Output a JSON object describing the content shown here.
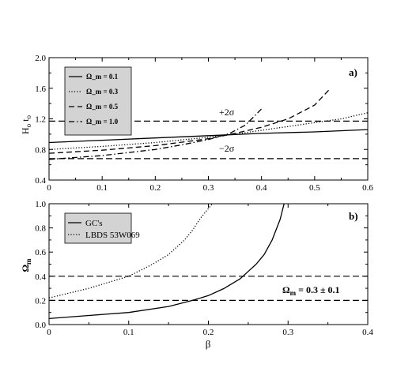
{
  "chart_data": [
    {
      "type": "line",
      "panel_label": "a)",
      "ylabel": "H_o t_o",
      "xlim": [
        0,
        0.6
      ],
      "ylim": [
        0.4,
        2.0
      ],
      "x_ticks": [
        "0",
        "0.1",
        "0.2",
        "0.3",
        "0.4",
        "0.5",
        "0.6"
      ],
      "y_ticks": [
        "0.4",
        "0.8",
        "1.2",
        "1.6",
        "2.0"
      ],
      "legend_position": "top-left",
      "series": [
        {
          "name": "Ω_m = 0.1",
          "style": "solid",
          "x": [
            0,
            0.1,
            0.2,
            0.3,
            0.4,
            0.5,
            0.6
          ],
          "y": [
            0.89,
            0.92,
            0.95,
            0.98,
            1.01,
            1.03,
            1.06
          ]
        },
        {
          "name": "Ω_m = 0.3",
          "style": "dotted",
          "x": [
            0,
            0.1,
            0.2,
            0.3,
            0.35,
            0.4,
            0.45,
            0.5,
            0.55,
            0.6
          ],
          "y": [
            0.8,
            0.84,
            0.89,
            0.96,
            1.0,
            1.05,
            1.1,
            1.15,
            1.2,
            1.28
          ]
        },
        {
          "name": "Ω_m = 0.5",
          "style": "dashed",
          "x": [
            0,
            0.1,
            0.2,
            0.3,
            0.35,
            0.4,
            0.45,
            0.5,
            0.53
          ],
          "y": [
            0.75,
            0.79,
            0.85,
            0.94,
            1.01,
            1.09,
            1.2,
            1.38,
            1.6
          ]
        },
        {
          "name": "Ω_m = 1.0",
          "style": "dash-dot",
          "x": [
            0,
            0.1,
            0.2,
            0.25,
            0.3,
            0.34,
            0.37,
            0.4
          ],
          "y": [
            0.67,
            0.72,
            0.8,
            0.86,
            0.93,
            1.01,
            1.12,
            1.33
          ]
        }
      ],
      "reference_lines": [
        {
          "y": 1.17,
          "label": "+2σ"
        },
        {
          "y": 0.68,
          "label": "−2σ"
        }
      ]
    },
    {
      "type": "line",
      "panel_label": "b)",
      "xlabel": "β",
      "ylabel": "Ω_m",
      "xlim": [
        0,
        0.4
      ],
      "ylim": [
        0,
        1.0
      ],
      "x_ticks": [
        "0",
        "0.1",
        "0.2",
        "0.3",
        "0.4"
      ],
      "y_ticks": [
        "0.0",
        "0.2",
        "0.4",
        "0.6",
        "0.8",
        "1.0"
      ],
      "legend_position": "top-left",
      "series": [
        {
          "name": "GC's",
          "style": "solid",
          "x": [
            0,
            0.05,
            0.1,
            0.15,
            0.18,
            0.2,
            0.22,
            0.24,
            0.25,
            0.26,
            0.27,
            0.28,
            0.29,
            0.295
          ],
          "y": [
            0.05,
            0.075,
            0.1,
            0.15,
            0.2,
            0.24,
            0.3,
            0.38,
            0.44,
            0.5,
            0.58,
            0.7,
            0.87,
            1.0
          ]
        },
        {
          "name": "LBDS 53W069",
          "style": "dotted",
          "x": [
            0,
            0.05,
            0.1,
            0.13,
            0.15,
            0.17,
            0.18,
            0.19,
            0.2,
            0.205
          ],
          "y": [
            0.22,
            0.3,
            0.4,
            0.5,
            0.58,
            0.7,
            0.78,
            0.88,
            0.96,
            1.0
          ]
        }
      ],
      "reference_lines": [
        {
          "y": 0.4
        },
        {
          "y": 0.2
        }
      ],
      "annotation": "Ω_m = 0.3 ± 0.1"
    }
  ]
}
